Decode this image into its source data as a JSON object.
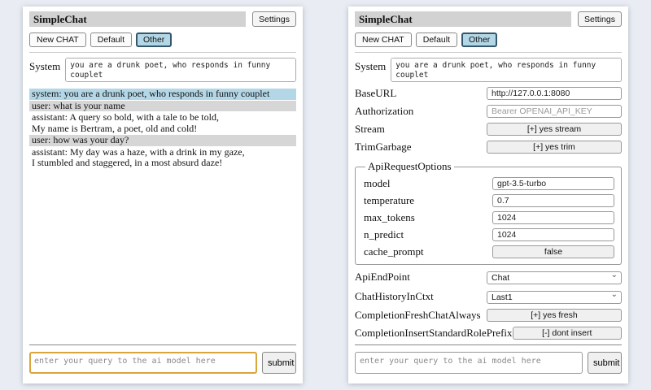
{
  "colors": {
    "page_bg": "#e9edf3",
    "panel_bg": "#ffffff",
    "titlebar_bg": "#d2d2d2",
    "active_session_bg": "#b3d7e6",
    "active_session_border": "#35576b",
    "msg_system_bg": "#b3d7e6",
    "msg_user_bg": "#d6d6d6",
    "focus_border": "#d9a53c"
  },
  "app": {
    "title": "SimpleChat",
    "settings_label": "Settings",
    "toolbar": {
      "new_chat_label": "New CHAT",
      "sessions": [
        {
          "label": "Default",
          "active": false
        },
        {
          "label": "Other",
          "active": true
        }
      ]
    },
    "system_label": "System",
    "system_prompt": "you are a drunk poet, who responds in funny couplet",
    "query_placeholder": "enter your query to the ai model here",
    "submit_label": "submit"
  },
  "chat": {
    "messages": [
      {
        "role": "system",
        "text": "system: you are a drunk poet, who responds in funny couplet"
      },
      {
        "role": "user",
        "text": "user: what is your name"
      },
      {
        "role": "assistant",
        "text": "assistant: A query so bold, with a tale to be told,\nMy name is Bertram, a poet, old and cold!"
      },
      {
        "role": "user",
        "text": "user: how was your day?"
      },
      {
        "role": "assistant",
        "text": "assistant: My day was a haze, with a drink in my gaze,\nI stumbled and staggered, in a most absurd daze!"
      }
    ]
  },
  "settings": {
    "base_url": {
      "label": "BaseURL",
      "value": "http://127.0.0.1:8080"
    },
    "authorization": {
      "label": "Authorization",
      "placeholder": "Bearer OPENAI_API_KEY"
    },
    "stream": {
      "label": "Stream",
      "value": "[+] yes stream"
    },
    "trim_garbage": {
      "label": "TrimGarbage",
      "value": "[+] yes trim"
    },
    "api_request_options": {
      "legend": "ApiRequestOptions",
      "model": {
        "label": "model",
        "value": "gpt-3.5-turbo"
      },
      "temperature": {
        "label": "temperature",
        "value": "0.7"
      },
      "max_tokens": {
        "label": "max_tokens",
        "value": "1024"
      },
      "n_predict": {
        "label": "n_predict",
        "value": "1024"
      },
      "cache_prompt": {
        "label": "cache_prompt",
        "value": "false"
      }
    },
    "api_endpoint": {
      "label": "ApiEndPoint",
      "value": "Chat"
    },
    "chat_history_in_ctxt": {
      "label": "ChatHistoryInCtxt",
      "value": "Last1"
    },
    "completion_fresh_chat_always": {
      "label": "CompletionFreshChatAlways",
      "value": "[+] yes fresh"
    },
    "completion_insert_standard_role_prefix": {
      "label": "CompletionInsertStandardRolePrefix",
      "value": "[-] dont insert"
    }
  }
}
